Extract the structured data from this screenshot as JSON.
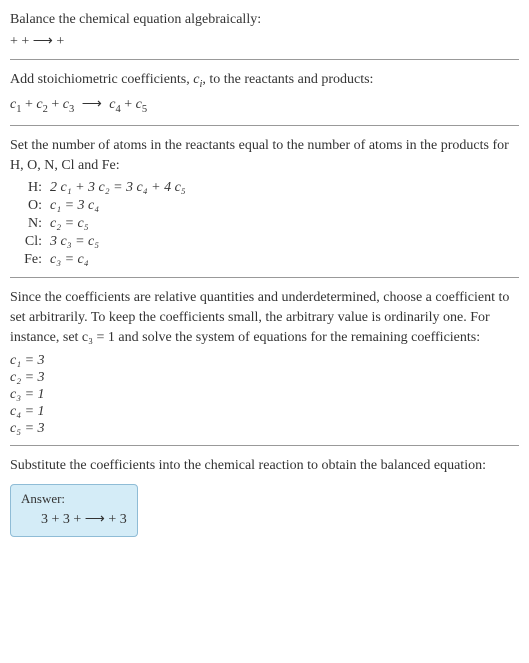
{
  "intro": {
    "line1": "Balance the chemical equation algebraically:",
    "reaction_blank": " +  +  ⟶  + "
  },
  "stoich": {
    "text": "Add stoichiometric coefficients, ",
    "ci": "c",
    "ci_sub": "i",
    "text2": ", to the reactants and products:",
    "eq_c1": "c",
    "eq_c1s": "1",
    "eq_c2": "c",
    "eq_c2s": "2",
    "eq_c3": "c",
    "eq_c3s": "3",
    "eq_arrow": "⟶",
    "eq_c4": "c",
    "eq_c4s": "4",
    "eq_c5": "c",
    "eq_c5s": "5"
  },
  "atoms": {
    "text": "Set the number of atoms in the reactants equal to the number of atoms in the products for H, O, N, Cl and Fe:",
    "rows": [
      {
        "el": "H:",
        "lhs": "2 c₁ + 3 c₂ = 3 c₄ + 4 c₅"
      },
      {
        "el": "O:",
        "lhs": "c₁ = 3 c₄"
      },
      {
        "el": "N:",
        "lhs": "c₂ = c₅"
      },
      {
        "el": "Cl:",
        "lhs": "3 c₃ = c₅"
      },
      {
        "el": "Fe:",
        "lhs": "c₃ = c₄"
      }
    ]
  },
  "choose": {
    "text": "Since the coefficients are relative quantities and underdetermined, choose a coefficient to set arbitrarily. To keep the coefficients small, the arbitrary value is ordinarily one. For instance, set c₃ = 1 and solve the system of equations for the remaining coefficients:",
    "coeffs": [
      "c₁ = 3",
      "c₂ = 3",
      "c₃ = 1",
      "c₄ = 1",
      "c₅ = 3"
    ]
  },
  "subst": {
    "text": "Substitute the coefficients into the chemical reaction to obtain the balanced equation:"
  },
  "answer": {
    "label": "Answer:",
    "eq": "3  + 3  +  ⟶  + 3"
  },
  "style": {
    "hr_color": "#999",
    "answer_bg": "#d4ecf7",
    "answer_border": "#8fbcd6"
  }
}
